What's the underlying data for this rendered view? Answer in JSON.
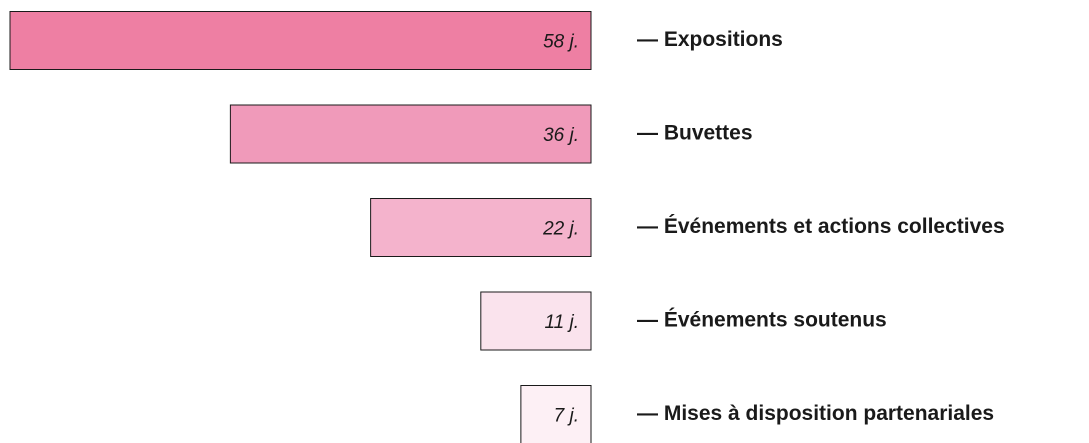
{
  "chart_data": {
    "type": "bar",
    "categories": [
      "— Expositions",
      "— Buvettes",
      "— Événements et actions collectives",
      "— Événements soutenus",
      "— Mises à disposition partenariales"
    ],
    "values": [
      58,
      36,
      22,
      11,
      7
    ],
    "value_labels": [
      "58 j.",
      "36 j.",
      "22 j.",
      "11 j.",
      "7 j."
    ],
    "colors": [
      "#ee7fa3",
      "#f09aba",
      "#f4b3cc",
      "#fae3ed",
      "#fdf0f5"
    ]
  }
}
